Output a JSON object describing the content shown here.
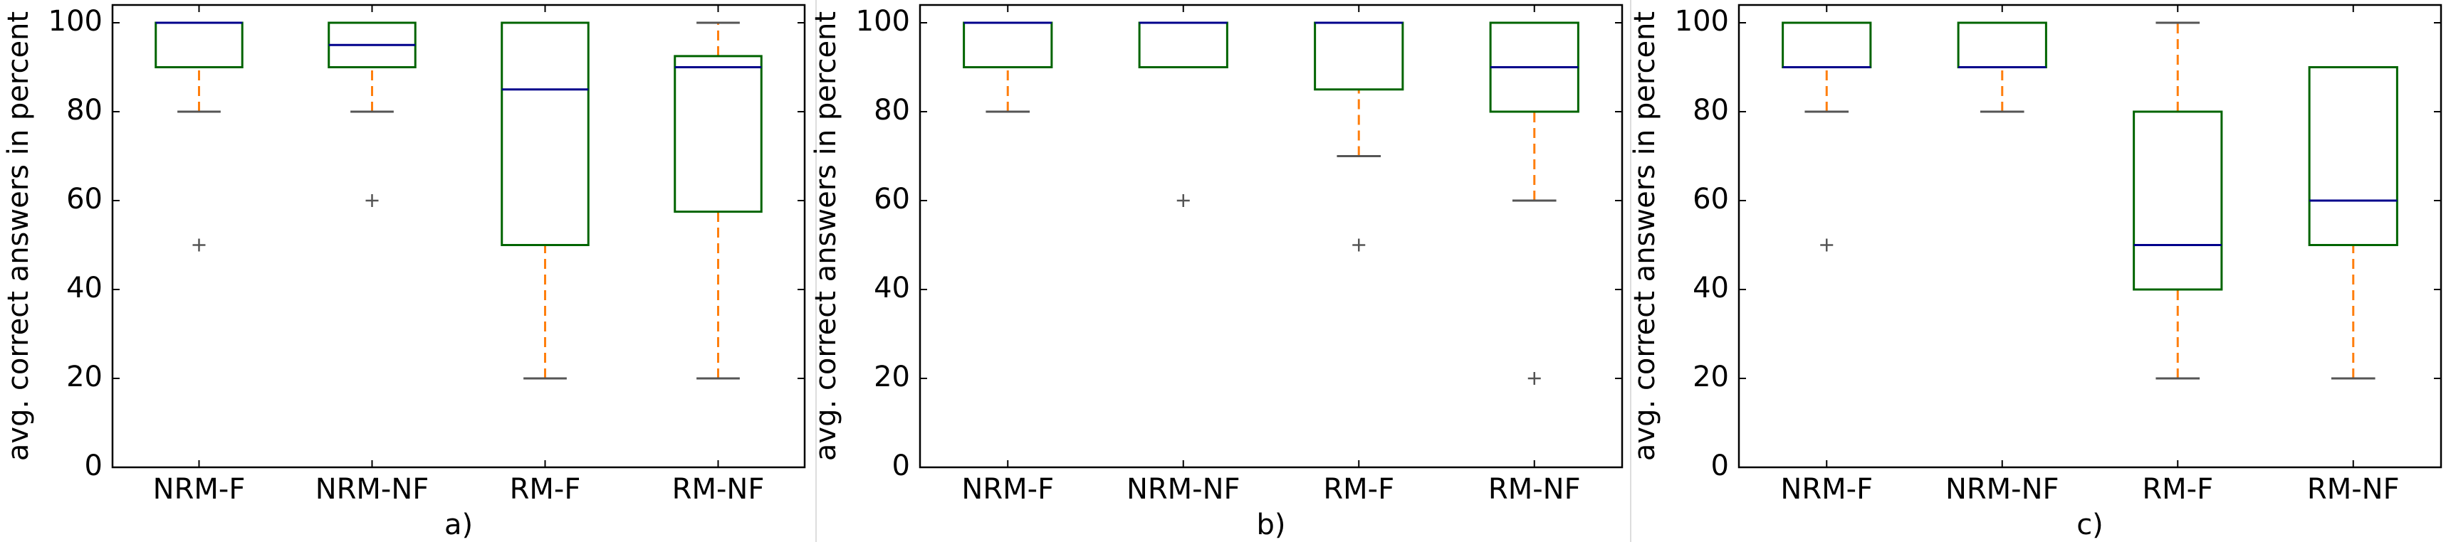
{
  "chart_data": [
    {
      "type": "box",
      "xlabel": "a)",
      "ylabel": "avg. correct answers in percent",
      "categories": [
        "NRM-F",
        "NRM-NF",
        "RM-F",
        "RM-NF"
      ],
      "boxes": [
        {
          "low": 80,
          "q1": 90,
          "median": 100,
          "q3": 100,
          "high": 100,
          "fliers": [
            50
          ]
        },
        {
          "low": 80,
          "q1": 90,
          "median": 95,
          "q3": 100,
          "high": 100,
          "fliers": [
            60
          ]
        },
        {
          "low": 20,
          "q1": 50,
          "median": 85,
          "q3": 100,
          "high": 100
        },
        {
          "low": 20,
          "q1": 57.5,
          "median": 90,
          "q3": 92.5,
          "high": 100
        }
      ],
      "ylim": [
        0,
        104
      ],
      "yticks": [
        0,
        20,
        40,
        60,
        80,
        100
      ],
      "box_color": "#006400",
      "median_color": "#00008b",
      "whisker_color": "#ff7f0e",
      "cap_color": "#555555"
    },
    {
      "type": "box",
      "xlabel": "b)",
      "ylabel": "avg. correct answers in percent",
      "categories": [
        "NRM-F",
        "NRM-NF",
        "RM-F",
        "RM-NF"
      ],
      "boxes": [
        {
          "low": 80,
          "q1": 90,
          "median": 100,
          "q3": 100,
          "high": 100
        },
        {
          "low": 90,
          "q1": 90,
          "median": 100,
          "q3": 100,
          "high": 100,
          "fliers": [
            60
          ]
        },
        {
          "low": 70,
          "q1": 85,
          "median": 100,
          "q3": 100,
          "high": 100,
          "fliers": [
            50
          ]
        },
        {
          "low": 60,
          "q1": 80,
          "median": 90,
          "q3": 100,
          "high": 100,
          "fliers": [
            20
          ]
        }
      ],
      "ylim": [
        0,
        104
      ],
      "yticks": [
        0,
        20,
        40,
        60,
        80,
        100
      ],
      "box_color": "#006400",
      "median_color": "#00008b",
      "whisker_color": "#ff7f0e",
      "cap_color": "#555555"
    },
    {
      "type": "box",
      "xlabel": "c)",
      "ylabel": "avg. correct answers in percent",
      "categories": [
        "NRM-F",
        "NRM-NF",
        "RM-F",
        "RM-NF"
      ],
      "boxes": [
        {
          "low": 80,
          "q1": 90,
          "median": 90,
          "q3": 100,
          "high": 100,
          "fliers": [
            50
          ]
        },
        {
          "low": 80,
          "q1": 90,
          "median": 90,
          "q3": 100,
          "high": 100
        },
        {
          "low": 20,
          "q1": 40,
          "median": 50,
          "q3": 80,
          "high": 100
        },
        {
          "low": 20,
          "q1": 50,
          "median": 60,
          "q3": 90,
          "high": 90
        }
      ],
      "ylim": [
        0,
        104
      ],
      "yticks": [
        0,
        20,
        40,
        60,
        80,
        100
      ],
      "box_color": "#006400",
      "median_color": "#00008b",
      "whisker_color": "#ff7f0e",
      "cap_color": "#555555"
    }
  ]
}
